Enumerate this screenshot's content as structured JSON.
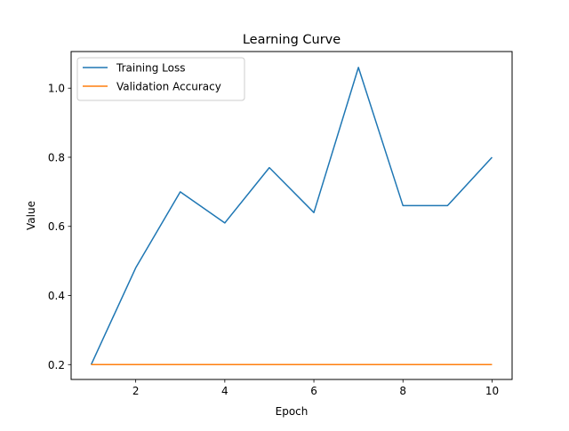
{
  "chart_data": {
    "type": "line",
    "title": "Learning Curve",
    "xlabel": "Epoch",
    "ylabel": "Value",
    "x": [
      1,
      2,
      3,
      4,
      5,
      6,
      7,
      8,
      9,
      10
    ],
    "xlim": [
      0.55,
      10.45
    ],
    "ylim": [
      0.157,
      1.106
    ],
    "xticks": [
      2,
      4,
      6,
      8,
      10
    ],
    "yticks": [
      0.2,
      0.4,
      0.6,
      0.8,
      1.0
    ],
    "xtick_labels": [
      "2",
      "4",
      "6",
      "8",
      "10"
    ],
    "ytick_labels": [
      "0.2",
      "0.4",
      "0.6",
      "0.8",
      "1.0"
    ],
    "grid": false,
    "legend_position": "top-left",
    "series": [
      {
        "name": "Training Loss",
        "color": "#1f77b4",
        "values": [
          0.2,
          0.48,
          0.7,
          0.61,
          0.77,
          0.64,
          1.06,
          0.66,
          0.66,
          0.8
        ]
      },
      {
        "name": "Validation Accuracy",
        "color": "#ff7f0e",
        "values": [
          0.2,
          0.2,
          0.2,
          0.2,
          0.2,
          0.2,
          0.2,
          0.2,
          0.2,
          0.2
        ]
      }
    ]
  }
}
